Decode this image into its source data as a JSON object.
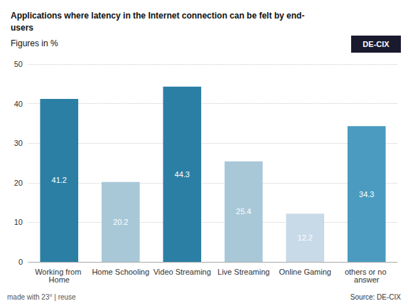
{
  "chart_data": {
    "type": "bar",
    "title": "Applications where latency in the Internet connection can be felt by end-\nusers",
    "subtitle": "Figures in %",
    "categories": [
      "Working from Home",
      "Home Schooling",
      "Video Streaming",
      "Live Streaming",
      "Online Gaming",
      "others or no answer"
    ],
    "values": [
      41.2,
      20.2,
      44.3,
      25.4,
      12.2,
      34.3
    ],
    "colors": [
      "#2b7fa4",
      "#a8c8d8",
      "#2b7fa4",
      "#a8c8d8",
      "#c8dae8",
      "#4a9bbf"
    ],
    "ylim": [
      0,
      50
    ],
    "yticks": [
      0,
      10,
      20,
      30,
      40,
      50
    ],
    "grid": true,
    "data_labels": true,
    "annotations": [
      "made with 23° | reuse",
      "Source: DE-CIX",
      "DE-CIX"
    ]
  }
}
